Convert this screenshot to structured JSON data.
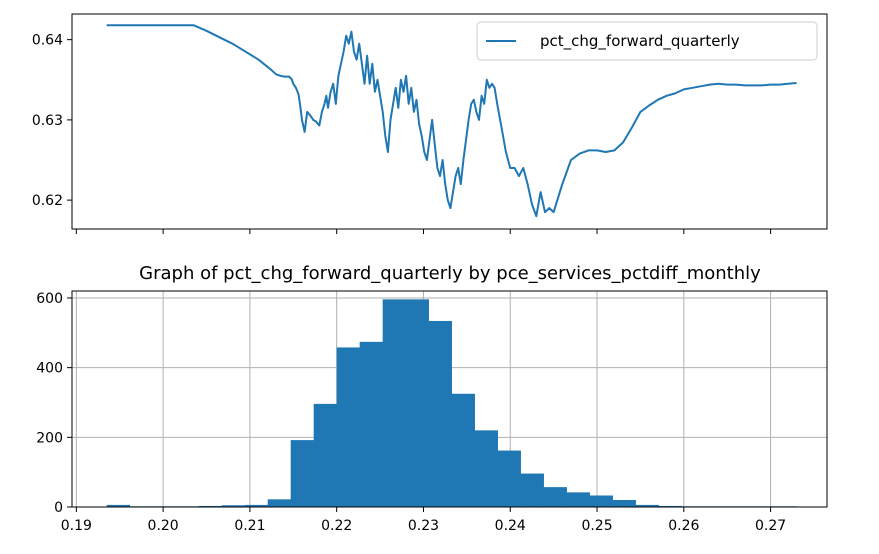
{
  "chart_data": [
    {
      "type": "line",
      "title": "",
      "xlabel": "",
      "ylabel": "",
      "legend_position": "top-right",
      "grid": false,
      "xlim": [
        0.1895,
        0.2765
      ],
      "ylim": [
        0.6164,
        0.6432
      ],
      "yticks": [
        0.62,
        0.63,
        0.64
      ],
      "ytick_labels": [
        "0.62",
        "0.63",
        "0.64"
      ],
      "xticks": [
        0.19,
        0.2,
        0.21,
        0.22,
        0.23,
        0.24,
        0.25,
        0.26,
        0.27
      ],
      "series": [
        {
          "name": "pct_chg_forward_quarterly",
          "color": "#1f77b4",
          "x": [
            0.1935,
            0.196,
            0.198,
            0.2,
            0.202,
            0.2035,
            0.205,
            0.2065,
            0.208,
            0.2095,
            0.211,
            0.2125,
            0.213,
            0.2135,
            0.214,
            0.2145,
            0.2148,
            0.215,
            0.2153,
            0.2156,
            0.2158,
            0.216,
            0.2163,
            0.2166,
            0.217,
            0.2173,
            0.2176,
            0.218,
            0.2183,
            0.2186,
            0.2188,
            0.219,
            0.2193,
            0.2196,
            0.2199,
            0.2202,
            0.2205,
            0.2208,
            0.2211,
            0.2214,
            0.2217,
            0.222,
            0.2223,
            0.2226,
            0.2229,
            0.2232,
            0.2235,
            0.2238,
            0.2241,
            0.2244,
            0.2247,
            0.225,
            0.2253,
            0.2256,
            0.2259,
            0.2262,
            0.2265,
            0.2268,
            0.2271,
            0.2274,
            0.2277,
            0.228,
            0.2283,
            0.2286,
            0.2289,
            0.2292,
            0.2295,
            0.2298,
            0.2301,
            0.2304,
            0.2307,
            0.231,
            0.2313,
            0.2316,
            0.2319,
            0.2322,
            0.2325,
            0.2328,
            0.2331,
            0.2334,
            0.2337,
            0.234,
            0.2343,
            0.2346,
            0.2349,
            0.2352,
            0.2355,
            0.2358,
            0.2361,
            0.2364,
            0.2367,
            0.237,
            0.2373,
            0.2376,
            0.2379,
            0.2382,
            0.2385,
            0.239,
            0.2395,
            0.24,
            0.2405,
            0.241,
            0.2415,
            0.242,
            0.2425,
            0.243,
            0.2435,
            0.244,
            0.2445,
            0.245,
            0.246,
            0.247,
            0.248,
            0.249,
            0.25,
            0.251,
            0.252,
            0.253,
            0.254,
            0.255,
            0.256,
            0.257,
            0.258,
            0.259,
            0.26,
            0.261,
            0.262,
            0.263,
            0.264,
            0.265,
            0.266,
            0.267,
            0.268,
            0.269,
            0.27,
            0.271,
            0.272,
            0.273
          ],
          "values": [
            0.6418,
            0.6418,
            0.6418,
            0.6418,
            0.6418,
            0.6418,
            0.6411,
            0.6403,
            0.6395,
            0.6385,
            0.6375,
            0.6362,
            0.6357,
            0.6355,
            0.6354,
            0.6354,
            0.6351,
            0.6345,
            0.634,
            0.6332,
            0.6318,
            0.63,
            0.6285,
            0.631,
            0.6305,
            0.63,
            0.6298,
            0.6293,
            0.631,
            0.632,
            0.633,
            0.6315,
            0.6335,
            0.6345,
            0.632,
            0.6355,
            0.637,
            0.6385,
            0.6405,
            0.6395,
            0.641,
            0.6385,
            0.6375,
            0.6395,
            0.637,
            0.6345,
            0.638,
            0.6345,
            0.637,
            0.6335,
            0.635,
            0.633,
            0.631,
            0.628,
            0.626,
            0.63,
            0.632,
            0.634,
            0.6315,
            0.635,
            0.6335,
            0.6355,
            0.632,
            0.634,
            0.631,
            0.6325,
            0.6295,
            0.628,
            0.626,
            0.625,
            0.6275,
            0.63,
            0.627,
            0.624,
            0.623,
            0.625,
            0.622,
            0.62,
            0.619,
            0.621,
            0.623,
            0.624,
            0.622,
            0.625,
            0.6275,
            0.63,
            0.632,
            0.6325,
            0.631,
            0.63,
            0.633,
            0.632,
            0.635,
            0.634,
            0.6345,
            0.634,
            0.632,
            0.629,
            0.626,
            0.624,
            0.624,
            0.623,
            0.624,
            0.622,
            0.6195,
            0.618,
            0.621,
            0.6185,
            0.619,
            0.6185,
            0.622,
            0.625,
            0.6258,
            0.6262,
            0.6262,
            0.626,
            0.6262,
            0.6272,
            0.629,
            0.631,
            0.6318,
            0.6325,
            0.633,
            0.6333,
            0.6338,
            0.634,
            0.6342,
            0.6344,
            0.6345,
            0.6344,
            0.6344,
            0.6343,
            0.6343,
            0.6343,
            0.6344,
            0.6344,
            0.6345,
            0.6346
          ]
        }
      ]
    },
    {
      "type": "bar",
      "title": "Graph of pct_chg_forward_quarterly by pce_services_pctdiff_monthly",
      "xlabel": "",
      "ylabel": "",
      "grid": true,
      "color": "#1f77b4",
      "xlim": [
        0.1895,
        0.2765
      ],
      "ylim": [
        0,
        620
      ],
      "yticks": [
        0,
        200,
        400,
        600
      ],
      "ytick_labels": [
        "0",
        "200",
        "400",
        "600"
      ],
      "xticks": [
        0.19,
        0.2,
        0.21,
        0.22,
        0.23,
        0.24,
        0.25,
        0.26,
        0.27
      ],
      "xtick_labels": [
        "0.19",
        "0.20",
        "0.21",
        "0.22",
        "0.23",
        "0.24",
        "0.25",
        "0.26",
        "0.27"
      ],
      "bin_start": 0.1935,
      "bin_width": 0.00265,
      "values": [
        6,
        2,
        2,
        2,
        3,
        5,
        6,
        22,
        192,
        296,
        458,
        474,
        596,
        596,
        534,
        325,
        220,
        162,
        96,
        57,
        42,
        33,
        20,
        6,
        3,
        2,
        2,
        2,
        2,
        2
      ]
    }
  ]
}
